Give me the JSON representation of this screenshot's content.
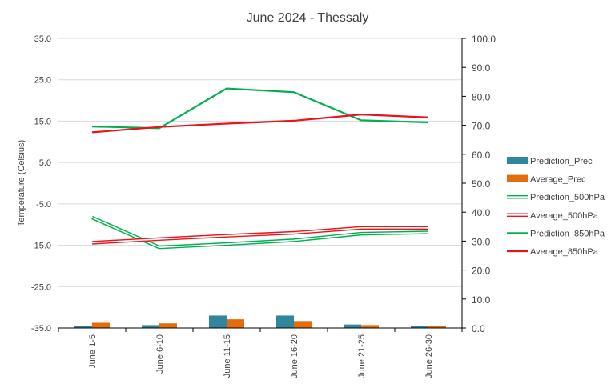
{
  "chart_data": {
    "type": "bar+line",
    "title": "June 2024 - Thessaly",
    "ylabel": "Temperature (Celsius)",
    "categories": [
      "June 1-5",
      "June 6-10",
      "June 11-15",
      "June 16-20",
      "June 21-25",
      "June 26-30"
    ],
    "y_left": {
      "min": -35,
      "max": 35,
      "step": 10,
      "ticks": [
        "35.0",
        "25.0",
        "15.0",
        "5.0",
        "-5.0",
        "-15.0",
        "-25.0",
        "-35.0"
      ]
    },
    "y_right": {
      "min": 0,
      "max": 100,
      "step": 10,
      "ticks": [
        "100.0",
        "90.0",
        "80.0",
        "70.0",
        "60.0",
        "50.0",
        "40.0",
        "30.0",
        "20.0",
        "10.0",
        "0.0"
      ]
    },
    "grid": true,
    "legend_position": "right",
    "series": [
      {
        "name": "Prediction_Prec",
        "kind": "bar",
        "axis": "right",
        "color": "#31859c",
        "values": [
          0.8,
          1.0,
          4.3,
          4.3,
          1.2,
          0.7
        ]
      },
      {
        "name": "Average_Prec",
        "kind": "bar",
        "axis": "right",
        "color": "#e46c0a",
        "values": [
          1.8,
          1.6,
          3.0,
          2.4,
          1.0,
          0.8
        ]
      },
      {
        "name": "Prediction_500hPa",
        "kind": "line",
        "style": "double",
        "axis": "left",
        "color": "#00b050",
        "values": [
          -8.3,
          -15.5,
          -14.7,
          -13.8,
          -12.2,
          -11.9
        ]
      },
      {
        "name": "Average_500hPa",
        "kind": "line",
        "style": "double",
        "axis": "left",
        "color": "#e8141e",
        "values": [
          -14.4,
          -13.5,
          -12.7,
          -12.0,
          -10.8,
          -10.8
        ]
      },
      {
        "name": "Prediction_850hPa",
        "kind": "line",
        "style": "solid",
        "axis": "left",
        "color": "#00b050",
        "values": [
          13.7,
          13.3,
          22.9,
          22.0,
          15.2,
          14.7
        ]
      },
      {
        "name": "Average_850hPa",
        "kind": "line",
        "style": "solid",
        "axis": "left",
        "color": "#e8141e",
        "values": [
          12.3,
          13.6,
          14.4,
          15.1,
          16.6,
          15.9
        ]
      }
    ]
  }
}
